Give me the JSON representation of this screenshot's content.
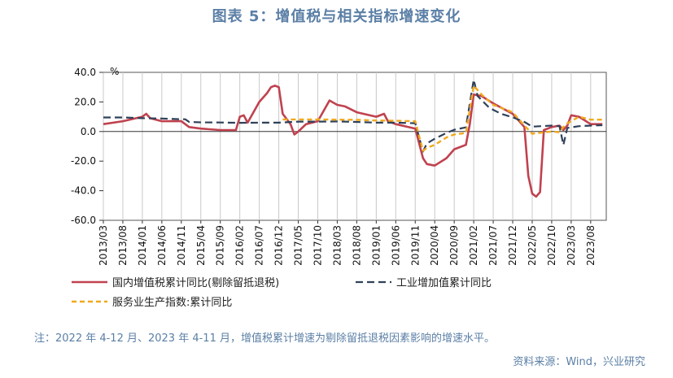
{
  "figure": {
    "title": "图表 5：增值税与相关指标增速变化",
    "note": "注：2022 年 4-12 月、2023 年 4-11 月，增值税累计增速为剔除留抵退税因素影响的增速水平。",
    "source": "资料来源：Wind，兴业研究"
  },
  "chart_data": {
    "type": "line",
    "ylabel": "%",
    "ylim": [
      -60,
      40
    ],
    "yticks": [
      "40.0",
      "20.0",
      "0.0",
      "-20.0",
      "-40.0",
      "-60.0"
    ],
    "x_tick_labels": [
      "2013/03",
      "2013/08",
      "2014/01",
      "2014/06",
      "2014/11",
      "2015/04",
      "2015/09",
      "2016/02",
      "2016/07",
      "2016/12",
      "2017/05",
      "2017/10",
      "2018/03",
      "2018/08",
      "2019/01",
      "2019/06",
      "2019/11",
      "2020/04",
      "2020/09",
      "2021/02",
      "2021/07",
      "2021/12",
      "2022/05",
      "2022/10",
      "2023/03",
      "2023/08"
    ],
    "legend_position": "bottom",
    "series": [
      {
        "name": "国内增值税累计同比(剔除留抵退税)",
        "color": "#c0424f",
        "dash": "solid",
        "points": [
          [
            "2013/03",
            5
          ],
          [
            "2013/08",
            7
          ],
          [
            "2014/01",
            10
          ],
          [
            "2014/02",
            12
          ],
          [
            "2014/03",
            9
          ],
          [
            "2014/06",
            7
          ],
          [
            "2014/11",
            7
          ],
          [
            "2015/01",
            3
          ],
          [
            "2015/04",
            2
          ],
          [
            "2015/09",
            1
          ],
          [
            "2016/01",
            1
          ],
          [
            "2016/02",
            10
          ],
          [
            "2016/03",
            11
          ],
          [
            "2016/04",
            6
          ],
          [
            "2016/07",
            20
          ],
          [
            "2016/09",
            26
          ],
          [
            "2016/10",
            30
          ],
          [
            "2016/11",
            31
          ],
          [
            "2016/12",
            30
          ],
          [
            "2017/01",
            12
          ],
          [
            "2017/03",
            5
          ],
          [
            "2017/04",
            -2
          ],
          [
            "2017/05",
            0
          ],
          [
            "2017/07",
            5
          ],
          [
            "2017/10",
            7
          ],
          [
            "2018/01",
            21
          ],
          [
            "2018/03",
            18
          ],
          [
            "2018/05",
            17
          ],
          [
            "2018/08",
            13
          ],
          [
            "2019/01",
            10
          ],
          [
            "2019/03",
            12
          ],
          [
            "2019/04",
            7
          ],
          [
            "2019/06",
            5
          ],
          [
            "2019/11",
            2
          ],
          [
            "2020/01",
            -18
          ],
          [
            "2020/02",
            -22
          ],
          [
            "2020/04",
            -23
          ],
          [
            "2020/07",
            -18
          ],
          [
            "2020/09",
            -12
          ],
          [
            "2020/11",
            -10
          ],
          [
            "2020/12",
            -9
          ],
          [
            "2021/01",
            5
          ],
          [
            "2021/02",
            25
          ],
          [
            "2021/04",
            24
          ],
          [
            "2021/07",
            19
          ],
          [
            "2021/12",
            12
          ],
          [
            "2022/03",
            3
          ],
          [
            "2022/04",
            -30
          ],
          [
            "2022/05",
            -42
          ],
          [
            "2022/06",
            -44
          ],
          [
            "2022/07",
            -41
          ],
          [
            "2022/08",
            1
          ],
          [
            "2022/10",
            3
          ],
          [
            "2022/12",
            4
          ],
          [
            "2023/01",
            1
          ],
          [
            "2023/02",
            4
          ],
          [
            "2023/03",
            11
          ],
          [
            "2023/05",
            10
          ],
          [
            "2023/08",
            5
          ],
          [
            "2023/11",
            5
          ]
        ]
      },
      {
        "name": "工业增加值累计同比",
        "color": "#2f4159",
        "dash": "long-dash",
        "points": [
          [
            "2013/03",
            9.5
          ],
          [
            "2013/08",
            9.5
          ],
          [
            "2014/01",
            9
          ],
          [
            "2014/06",
            8.8
          ],
          [
            "2014/11",
            8.3
          ],
          [
            "2014/12",
            8.3
          ],
          [
            "2015/01",
            6.5
          ],
          [
            "2015/04",
            6.2
          ],
          [
            "2015/09",
            6.1
          ],
          [
            "2016/02",
            5.9
          ],
          [
            "2016/07",
            6
          ],
          [
            "2016/12",
            6
          ],
          [
            "2017/05",
            6.7
          ],
          [
            "2017/10",
            6.7
          ],
          [
            "2018/03",
            6.8
          ],
          [
            "2018/08",
            6.5
          ],
          [
            "2019/01",
            6
          ],
          [
            "2019/06",
            6
          ],
          [
            "2019/11",
            5.6
          ],
          [
            "2020/01",
            -13.5
          ],
          [
            "2020/02",
            -8
          ],
          [
            "2020/04",
            -4.9
          ],
          [
            "2020/07",
            -1
          ],
          [
            "2020/09",
            1.2
          ],
          [
            "2020/12",
            2.8
          ],
          [
            "2021/02",
            35
          ],
          [
            "2021/03",
            24
          ],
          [
            "2021/06",
            16
          ],
          [
            "2021/09",
            12
          ],
          [
            "2021/12",
            9.6
          ],
          [
            "2022/03",
            6.5
          ],
          [
            "2022/05",
            3.3
          ],
          [
            "2022/10",
            4
          ],
          [
            "2022/12",
            3.6
          ],
          [
            "2023/01",
            -9
          ],
          [
            "2023/02",
            2.4
          ],
          [
            "2023/05",
            3.6
          ],
          [
            "2023/08",
            4
          ],
          [
            "2023/11",
            4.3
          ]
        ]
      },
      {
        "name": "服务业生产指数:累计同比",
        "color": "#f0a91e",
        "dash": "short-dash",
        "points": [
          [
            "2017/01",
            8.2
          ],
          [
            "2017/05",
            8.2
          ],
          [
            "2017/10",
            8.2
          ],
          [
            "2018/03",
            8
          ],
          [
            "2018/08",
            7.9
          ],
          [
            "2019/01",
            7.5
          ],
          [
            "2019/06",
            7.3
          ],
          [
            "2019/11",
            7
          ],
          [
            "2020/01",
            -13
          ],
          [
            "2020/02",
            -11
          ],
          [
            "2020/04",
            -9
          ],
          [
            "2020/07",
            -4
          ],
          [
            "2020/09",
            -2
          ],
          [
            "2020/12",
            -1
          ],
          [
            "2021/02",
            31
          ],
          [
            "2021/04",
            25
          ],
          [
            "2021/07",
            18
          ],
          [
            "2021/12",
            13
          ],
          [
            "2022/03",
            4
          ],
          [
            "2022/05",
            -1.5
          ],
          [
            "2022/10",
            0
          ],
          [
            "2022/12",
            -0.5
          ],
          [
            "2023/01",
            3
          ],
          [
            "2023/02",
            5.5
          ],
          [
            "2023/05",
            10
          ],
          [
            "2023/08",
            8
          ],
          [
            "2023/11",
            8
          ]
        ]
      }
    ]
  }
}
